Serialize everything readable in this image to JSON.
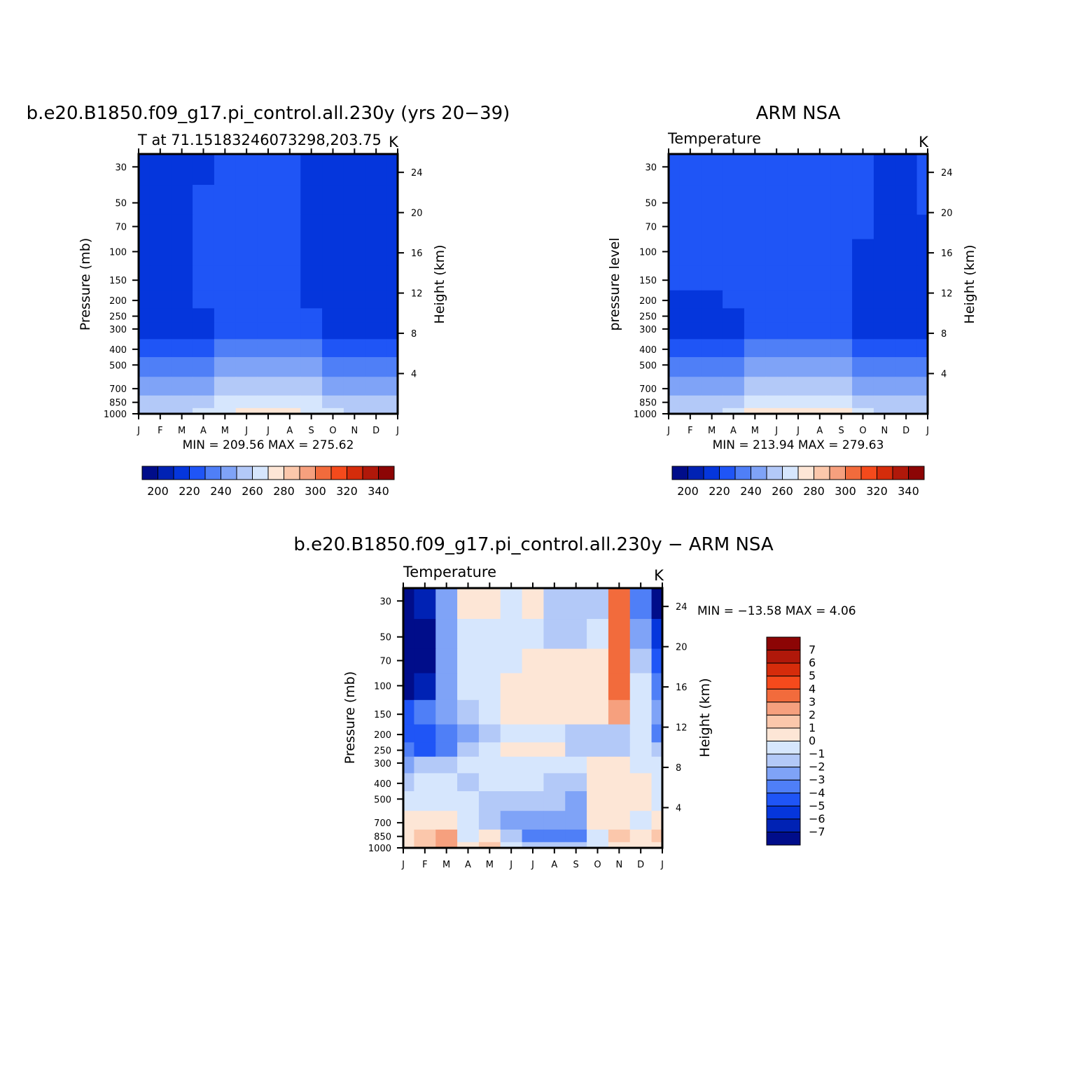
{
  "colors": {
    "palette": [
      "#000d8a",
      "#0022b4",
      "#0536dc",
      "#1f55f6",
      "#4f7ff7",
      "#7fa3f7",
      "#b3c9f8",
      "#d6e6fd",
      "#fde6d6",
      "#fbc7ab",
      "#f6a07e",
      "#f26b3c",
      "#f54a1c",
      "#d52c0b",
      "#b0180a",
      "#8c0505"
    ],
    "diff_palette": [
      "#000d8a",
      "#0022b4",
      "#0536dc",
      "#1f55f6",
      "#4f7ff7",
      "#7fa3f7",
      "#b3c9f8",
      "#d6e6fd",
      "#fde6d6",
      "#fbc7ab",
      "#f6a07e",
      "#f26b3c",
      "#f54a1c",
      "#d52c0b",
      "#b0180a",
      "#8c0505"
    ]
  },
  "axes": {
    "months": [
      "J",
      "F",
      "M",
      "A",
      "M",
      "J",
      "J",
      "A",
      "S",
      "O",
      "N",
      "D",
      "J"
    ],
    "pressure_ticks": [
      "30",
      "50",
      "70",
      "100",
      "150",
      "200",
      "250",
      "300",
      "400",
      "500",
      "700",
      "850",
      "1000"
    ],
    "height_ticks": [
      "24",
      "20",
      "16",
      "12",
      "8",
      "4"
    ]
  },
  "panels": [
    {
      "title": "b.e20.B1850.f09_g17.pi_control.all.230y (yrs 20−39)",
      "subtitle": "T at 71.15183246073298,203.75",
      "units": "K",
      "ylabel": "Pressure (mb)",
      "ylabel_right": "Height (km)",
      "stats": "MIN = 209.56  MAX = 275.62",
      "colorbar_labels": [
        "200",
        "220",
        "240",
        "260",
        "280",
        "300",
        "320",
        "340"
      ]
    },
    {
      "title": "ARM NSA",
      "subtitle": "Temperature",
      "units": "K",
      "ylabel": "pressure level",
      "ylabel_right": "Height (km)",
      "stats": "MIN = 213.94  MAX = 279.63",
      "colorbar_labels": [
        "200",
        "220",
        "240",
        "260",
        "280",
        "300",
        "320",
        "340"
      ]
    },
    {
      "title": "b.e20.B1850.f09_g17.pi_control.all.230y − ARM NSA",
      "subtitle": "Temperature",
      "units": "K",
      "ylabel": "Pressure (mb)",
      "ylabel_right": "Height (km)",
      "stats": "MIN = −13.58  MAX =    4.06",
      "colorbar_labels": [
        "7",
        "6",
        "5",
        "4",
        "3",
        "2",
        "1",
        "0",
        "−1",
        "−2",
        "−3",
        "−4",
        "−5",
        "−6",
        "−7"
      ]
    }
  ],
  "chart_data": [
    {
      "type": "heatmap",
      "title": "b.e20.B1850.f09_g17.pi_control.all.230y (yrs 20−39)",
      "subtitle": "T at 71.15183246073298,203.75",
      "xlabel": "",
      "ylabel": "Pressure (mb)",
      "units": "K",
      "x": [
        "J",
        "F",
        "M",
        "A",
        "M",
        "J",
        "J",
        "A",
        "S",
        "O",
        "N",
        "D",
        "J"
      ],
      "y": [
        30,
        50,
        70,
        100,
        150,
        200,
        250,
        300,
        400,
        500,
        700,
        850,
        1000
      ],
      "y_scale": "log",
      "levels": [
        200,
        210,
        220,
        230,
        240,
        250,
        260,
        270,
        280,
        290,
        300,
        310,
        320,
        330,
        340
      ],
      "min": 209.56,
      "max": 275.62,
      "values": [
        [
          211,
          213,
          217,
          219,
          221,
          221,
          221,
          221,
          219,
          215,
          212,
          211,
          211
        ],
        [
          211,
          214,
          218,
          220,
          221,
          221,
          221,
          220,
          219,
          215,
          212,
          211,
          211
        ],
        [
          211,
          214,
          218,
          220,
          221,
          221,
          221,
          221,
          218,
          215,
          212,
          211,
          211
        ],
        [
          212,
          215,
          218,
          220,
          221,
          221,
          221,
          221,
          218,
          215,
          212,
          212,
          212
        ],
        [
          213,
          215,
          218,
          220,
          221,
          221,
          221,
          221,
          218,
          215,
          213,
          213,
          213
        ],
        [
          214,
          215,
          217,
          220,
          221,
          222,
          222,
          221,
          219,
          216,
          214,
          214,
          214
        ],
        [
          214,
          214,
          215,
          219,
          221,
          223,
          223,
          222,
          221,
          217,
          215,
          214,
          214
        ],
        [
          216,
          216,
          217,
          219,
          222,
          224,
          225,
          224,
          222,
          219,
          217,
          216,
          216
        ],
        [
          224,
          225,
          226,
          228,
          230,
          232,
          233,
          232,
          230,
          228,
          226,
          225,
          224
        ],
        [
          233,
          234,
          234,
          237,
          240,
          243,
          245,
          243,
          240,
          237,
          235,
          234,
          233
        ],
        [
          243,
          244,
          245,
          248,
          252,
          256,
          258,
          256,
          252,
          248,
          245,
          244,
          243
        ],
        [
          252,
          253,
          255,
          258,
          262,
          266,
          268,
          266,
          262,
          257,
          254,
          253,
          252
        ],
        [
          253,
          255,
          258,
          262,
          267,
          272,
          275,
          272,
          267,
          261,
          256,
          254,
          253
        ]
      ]
    },
    {
      "type": "heatmap",
      "title": "ARM NSA",
      "subtitle": "Temperature",
      "xlabel": "",
      "ylabel": "pressure level",
      "units": "K",
      "x": [
        "J",
        "F",
        "M",
        "A",
        "M",
        "J",
        "J",
        "A",
        "S",
        "O",
        "N",
        "D",
        "J"
      ],
      "y": [
        30,
        50,
        70,
        100,
        150,
        200,
        250,
        300,
        400,
        500,
        700,
        850,
        1000
      ],
      "y_scale": "log",
      "levels": [
        200,
        210,
        220,
        230,
        240,
        250,
        260,
        270,
        280,
        290,
        300,
        310,
        320,
        330,
        340
      ],
      "min": 213.94,
      "max": 279.63,
      "values": [
        [
          221,
          221,
          221,
          221,
          221,
          221,
          221,
          221,
          221,
          221,
          218,
          215,
          221
        ],
        [
          221,
          221,
          221,
          221,
          221,
          221,
          221,
          221,
          221,
          220,
          215,
          214,
          221
        ],
        [
          221,
          221,
          221,
          221,
          221,
          221,
          221,
          221,
          221,
          220,
          215,
          214,
          216
        ],
        [
          221,
          221,
          221,
          221,
          221,
          221,
          221,
          221,
          221,
          219,
          215,
          214,
          215
        ],
        [
          220,
          221,
          221,
          221,
          221,
          221,
          221,
          221,
          221,
          218,
          215,
          214,
          214
        ],
        [
          219,
          217,
          219,
          221,
          221,
          221,
          221,
          221,
          221,
          218,
          215,
          214,
          214
        ],
        [
          218,
          215,
          216,
          219,
          221,
          222,
          222,
          222,
          221,
          218,
          215,
          214,
          214
        ],
        [
          216,
          214,
          215,
          218,
          221,
          224,
          225,
          224,
          222,
          219,
          217,
          216,
          216
        ],
        [
          225,
          225,
          226,
          228,
          230,
          232,
          233,
          232,
          230,
          228,
          226,
          225,
          225
        ],
        [
          234,
          234,
          234,
          237,
          240,
          243,
          245,
          243,
          240,
          237,
          235,
          234,
          234
        ],
        [
          244,
          244,
          245,
          248,
          252,
          256,
          258,
          256,
          252,
          248,
          245,
          244,
          244
        ],
        [
          253,
          253,
          255,
          258,
          262,
          266,
          268,
          266,
          262,
          257,
          254,
          253,
          253
        ],
        [
          254,
          256,
          259,
          264,
          270,
          276,
          279,
          276,
          270,
          263,
          257,
          255,
          254
        ]
      ]
    },
    {
      "type": "heatmap",
      "title": "b.e20.B1850.f09_g17.pi_control.all.230y − ARM NSA",
      "subtitle": "Temperature",
      "xlabel": "",
      "ylabel": "Pressure (mb)",
      "units": "K",
      "x": [
        "J",
        "F",
        "M",
        "A",
        "M",
        "J",
        "J",
        "A",
        "S",
        "O",
        "N",
        "D",
        "J"
      ],
      "y": [
        30,
        50,
        70,
        100,
        150,
        200,
        250,
        300,
        400,
        500,
        700,
        850,
        1000
      ],
      "y_scale": "log",
      "levels": [
        -7,
        -6,
        -5,
        -4,
        -3,
        -2,
        -1,
        0,
        1,
        2,
        3,
        4,
        5,
        6,
        7
      ],
      "min": -13.58,
      "max": 4.06,
      "values": [
        [
          -9,
          -7,
          -3,
          0.5,
          0.5,
          -0.5,
          0.5,
          -1.5,
          -2.0,
          -2,
          3.5,
          -4,
          -9
        ],
        [
          -9,
          -8,
          -3,
          -0.5,
          -0.5,
          -0.5,
          -0.5,
          -1.5,
          -1.5,
          -0.5,
          3.5,
          -3,
          -6
        ],
        [
          -9,
          -8,
          -3,
          -0.5,
          -0.5,
          -0.5,
          0.5,
          0.5,
          0.5,
          0.5,
          3.5,
          -2,
          -5
        ],
        [
          -8,
          -7,
          -3,
          -0.5,
          -0.5,
          0.5,
          0.5,
          0.5,
          0.5,
          0.5,
          3.0,
          -1,
          -4
        ],
        [
          -5,
          -4,
          -2.5,
          -1.5,
          -0.5,
          0.5,
          0.5,
          0.5,
          0.5,
          0.5,
          2.5,
          -1,
          -3
        ],
        [
          -5,
          -4.5,
          -3.5,
          -2.5,
          -2,
          -0.5,
          -0.5,
          -0.5,
          -2,
          -1.5,
          -1.5,
          -1,
          -4
        ],
        [
          -4,
          -4.5,
          -3.5,
          -1.5,
          -0.5,
          0.5,
          0.5,
          0.5,
          -1.5,
          -1.5,
          -1.5,
          -0.5,
          -2
        ],
        [
          -3,
          -2,
          -1.5,
          -0.5,
          -0.5,
          -0.5,
          -0.5,
          -0.5,
          -0.5,
          0.5,
          0.5,
          -0.5,
          -0.5
        ],
        [
          -1.5,
          -0.5,
          -0.5,
          -1.5,
          -0.5,
          -0.5,
          -0.5,
          -1.5,
          -1.5,
          0.5,
          0.5,
          0.5,
          -0.5
        ],
        [
          -0.5,
          -0.5,
          -0.5,
          -0.5,
          -1.5,
          -1.5,
          -1.5,
          -1.5,
          -2.5,
          0.5,
          0.5,
          0.5,
          -0.5
        ],
        [
          0.5,
          0.5,
          0.5,
          -0.5,
          -1.5,
          -2.5,
          -2.5,
          -2.5,
          -3,
          0.5,
          0.5,
          -0.5,
          0.5
        ],
        [
          0.5,
          1.5,
          2.5,
          -0.5,
          0.5,
          -1.5,
          -4,
          -4,
          -4,
          -0.5,
          1.5,
          0.5,
          1.5
        ],
        [
          0.5,
          1.5,
          2.5,
          0.5,
          1.5,
          -0.5,
          -1.5,
          -1.5,
          -1.5,
          -0.5,
          0.5,
          0.5,
          0.5
        ]
      ]
    }
  ]
}
